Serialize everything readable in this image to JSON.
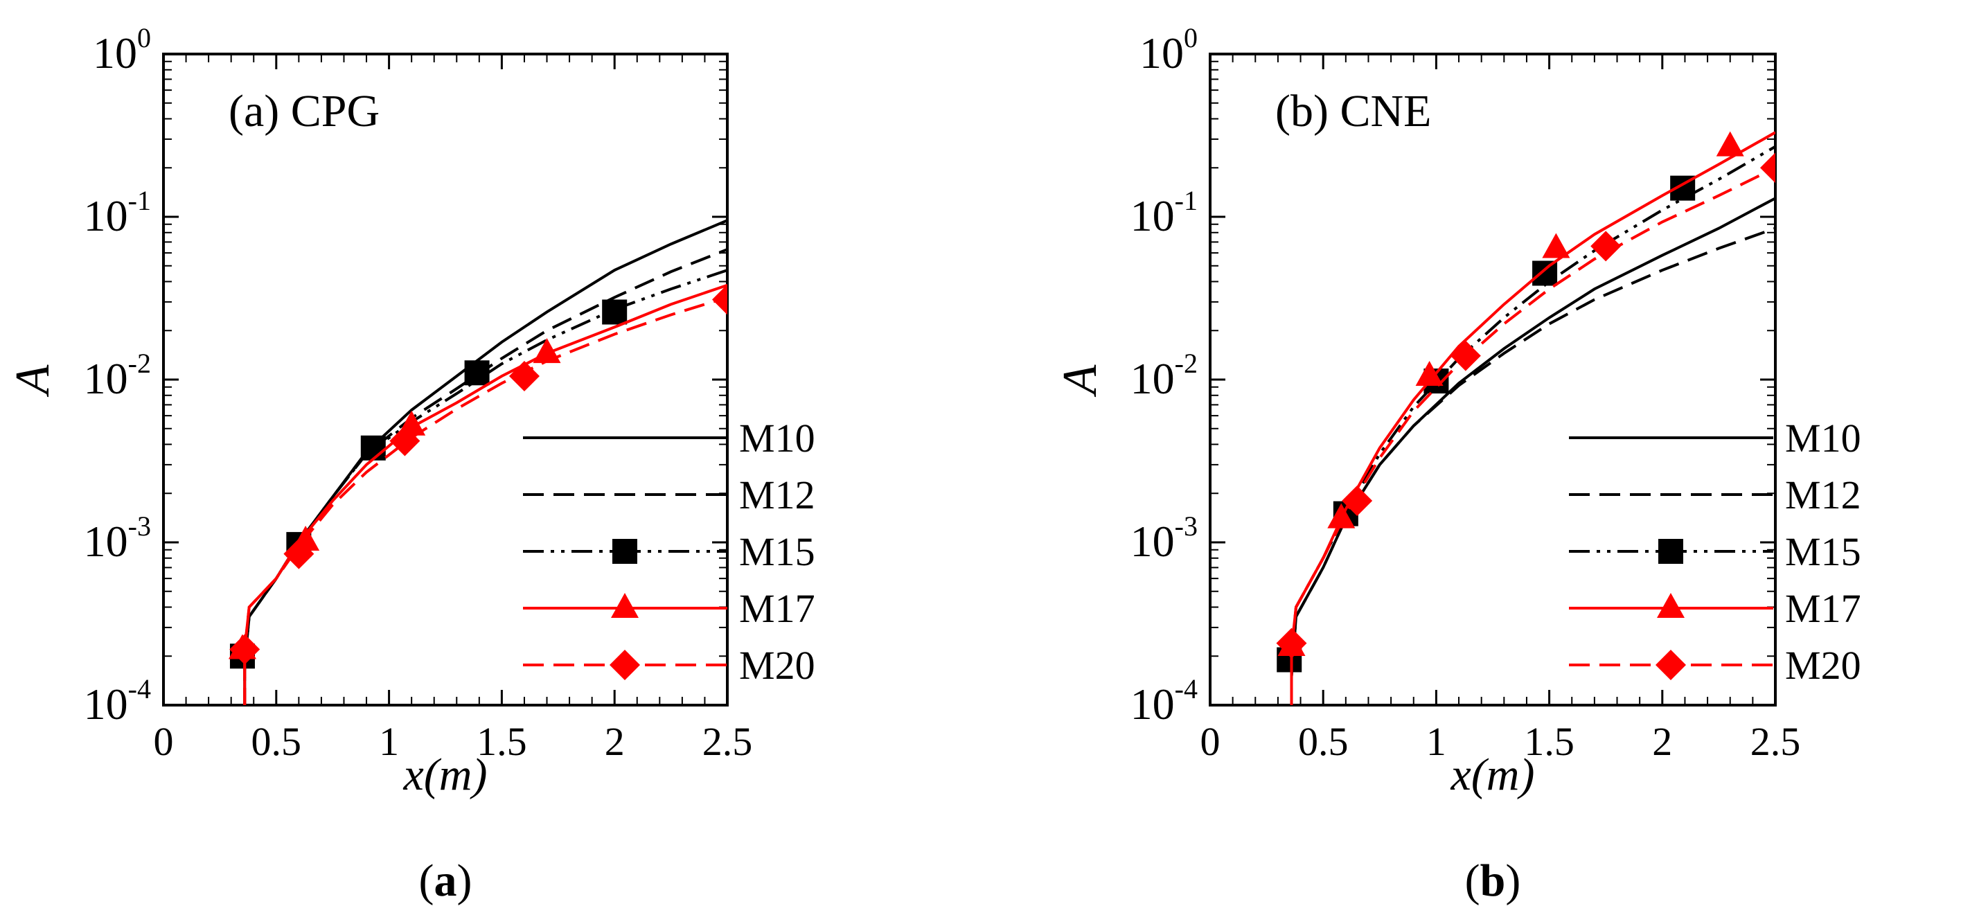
{
  "chart_data": [
    {
      "type": "line",
      "panel_label": "(a) CPG",
      "caption_letter": "a",
      "xlabel": "x(m)",
      "ylabel": "A",
      "yscale": "log",
      "xlim": [
        0,
        2.5
      ],
      "ylim": [
        0.0001,
        1
      ],
      "xticks": [
        "0",
        "0.5",
        "1",
        "1.5",
        "2",
        "2.5"
      ],
      "xtick_values": [
        0,
        0.5,
        1,
        1.5,
        2,
        2.5
      ],
      "yticks": [
        {
          "base": "10",
          "exp": "0"
        },
        {
          "base": "10",
          "exp": "-1"
        },
        {
          "base": "10",
          "exp": "-2"
        },
        {
          "base": "10",
          "exp": "-3"
        },
        {
          "base": "10",
          "exp": "-4"
        }
      ],
      "ytick_values": [
        1,
        0.1,
        0.01,
        0.001,
        0.0001
      ],
      "legend_position": "lower-right",
      "series": [
        {
          "name": "M10",
          "color": "#000000",
          "dash": "solid",
          "marker": "none",
          "x": [
            0.36,
            0.38,
            0.5,
            0.6,
            0.75,
            0.9,
            1.1,
            1.3,
            1.5,
            1.7,
            2.0,
            2.25,
            2.5
          ],
          "y": [
            0.00018,
            0.00035,
            0.0006,
            0.001,
            0.0019,
            0.0036,
            0.0065,
            0.0105,
            0.017,
            0.026,
            0.047,
            0.068,
            0.095
          ]
        },
        {
          "name": "M12",
          "color": "#000000",
          "dash": "dash",
          "marker": "none",
          "x": [
            0.36,
            0.38,
            0.5,
            0.6,
            0.75,
            0.9,
            1.1,
            1.3,
            1.5,
            1.7,
            2.0,
            2.25,
            2.5
          ],
          "y": [
            0.00018,
            0.00035,
            0.0006,
            0.001,
            0.0019,
            0.0035,
            0.0058,
            0.0088,
            0.0135,
            0.02,
            0.032,
            0.046,
            0.063
          ]
        },
        {
          "name": "M15",
          "color": "#000000",
          "dash": "dashdotdot",
          "marker": "square",
          "x": [
            0.36,
            0.38,
            0.5,
            0.6,
            0.75,
            0.9,
            1.1,
            1.3,
            1.5,
            1.7,
            2.0,
            2.25,
            2.5
          ],
          "y": [
            0.00018,
            0.00035,
            0.0006,
            0.001,
            0.0019,
            0.0035,
            0.0055,
            0.0082,
            0.0125,
            0.0175,
            0.027,
            0.036,
            0.047
          ],
          "marker_x": [
            0.35,
            0.6,
            0.93,
            1.39,
            2.0
          ],
          "marker_y": [
            0.0002,
            0.00097,
            0.0038,
            0.011,
            0.026
          ]
        },
        {
          "name": "M17",
          "color": "#ff0000",
          "dash": "solid",
          "marker": "triangle",
          "x": [
            0.36,
            0.38,
            0.5,
            0.6,
            0.75,
            0.9,
            1.1,
            1.3,
            1.5,
            1.7,
            2.0,
            2.25,
            2.5
          ],
          "y": [
            0.00022,
            0.0004,
            0.0006,
            0.001,
            0.0018,
            0.003,
            0.0051,
            0.0072,
            0.0105,
            0.0145,
            0.021,
            0.029,
            0.038
          ],
          "marker_x": [
            0.35,
            0.63,
            1.1,
            1.7
          ],
          "marker_y": [
            0.00022,
            0.00102,
            0.0052,
            0.0145
          ]
        },
        {
          "name": "M20",
          "color": "#ff0000",
          "dash": "dash",
          "marker": "diamond",
          "x": [
            0.36,
            0.38,
            0.5,
            0.6,
            0.75,
            0.9,
            1.1,
            1.3,
            1.5,
            1.7,
            2.0,
            2.25,
            2.5
          ],
          "y": [
            0.00022,
            0.0004,
            0.0006,
            0.00095,
            0.0017,
            0.0027,
            0.0044,
            0.0066,
            0.0095,
            0.013,
            0.019,
            0.025,
            0.032
          ],
          "marker_x": [
            0.36,
            0.6,
            1.07,
            1.6,
            2.5
          ],
          "marker_y": [
            0.00022,
            0.00085,
            0.0042,
            0.0105,
            0.031
          ]
        }
      ]
    },
    {
      "type": "line",
      "panel_label": "(b) CNE",
      "caption_letter": "b",
      "xlabel": "x(m)",
      "ylabel": "A",
      "yscale": "log",
      "xlim": [
        0,
        2.5
      ],
      "ylim": [
        0.0001,
        1
      ],
      "xticks": [
        "0",
        "0.5",
        "1",
        "1.5",
        "2",
        "2.5"
      ],
      "xtick_values": [
        0,
        0.5,
        1,
        1.5,
        2,
        2.5
      ],
      "yticks": [
        {
          "base": "10",
          "exp": "0"
        },
        {
          "base": "10",
          "exp": "-1"
        },
        {
          "base": "10",
          "exp": "-2"
        },
        {
          "base": "10",
          "exp": "-3"
        },
        {
          "base": "10",
          "exp": "-4"
        }
      ],
      "ytick_values": [
        1,
        0.1,
        0.01,
        0.001,
        0.0001
      ],
      "legend_position": "lower-right",
      "series": [
        {
          "name": "M10",
          "color": "#000000",
          "dash": "solid",
          "marker": "none",
          "x": [
            0.36,
            0.38,
            0.5,
            0.6,
            0.75,
            0.9,
            1.1,
            1.3,
            1.5,
            1.7,
            2.0,
            2.25,
            2.5
          ],
          "y": [
            0.00015,
            0.00035,
            0.0007,
            0.0014,
            0.003,
            0.0052,
            0.0095,
            0.0155,
            0.024,
            0.036,
            0.058,
            0.085,
            0.13
          ]
        },
        {
          "name": "M12",
          "color": "#000000",
          "dash": "dash",
          "marker": "none",
          "x": [
            0.36,
            0.38,
            0.5,
            0.6,
            0.75,
            0.9,
            1.1,
            1.3,
            1.5,
            1.7,
            2.0,
            2.25,
            2.5
          ],
          "y": [
            0.00015,
            0.00035,
            0.0007,
            0.0014,
            0.003,
            0.0052,
            0.0092,
            0.0145,
            0.022,
            0.031,
            0.047,
            0.064,
            0.085
          ]
        },
        {
          "name": "M15",
          "color": "#000000",
          "dash": "dashdotdot",
          "marker": "square",
          "x": [
            0.36,
            0.38,
            0.5,
            0.6,
            0.75,
            0.9,
            1.1,
            1.3,
            1.5,
            1.7,
            2.0,
            2.25,
            2.5
          ],
          "y": [
            0.00018,
            0.0004,
            0.0008,
            0.0015,
            0.0035,
            0.0068,
            0.0135,
            0.024,
            0.04,
            0.062,
            0.11,
            0.17,
            0.27
          ],
          "marker_x": [
            0.35,
            0.6,
            1.0,
            1.48,
            2.09
          ],
          "marker_y": [
            0.00019,
            0.0015,
            0.0098,
            0.045,
            0.15
          ]
        },
        {
          "name": "M17",
          "color": "#ff0000",
          "dash": "solid",
          "marker": "triangle",
          "x": [
            0.36,
            0.38,
            0.5,
            0.6,
            0.75,
            0.9,
            1.1,
            1.3,
            1.5,
            1.7,
            2.0,
            2.25,
            2.5
          ],
          "y": [
            0.00022,
            0.0004,
            0.0008,
            0.0016,
            0.0038,
            0.0075,
            0.016,
            0.029,
            0.05,
            0.078,
            0.135,
            0.21,
            0.33
          ],
          "marker_x": [
            0.36,
            0.58,
            0.97,
            1.53,
            2.3
          ],
          "marker_y": [
            0.00023,
            0.0014,
            0.0105,
            0.064,
            0.27
          ]
        },
        {
          "name": "M20",
          "color": "#ff0000",
          "dash": "dash",
          "marker": "diamond",
          "x": [
            0.36,
            0.38,
            0.5,
            0.6,
            0.75,
            0.9,
            1.1,
            1.3,
            1.5,
            1.7,
            2.0,
            2.25,
            2.5
          ],
          "y": [
            0.00022,
            0.0004,
            0.0008,
            0.0015,
            0.0033,
            0.0064,
            0.0125,
            0.022,
            0.036,
            0.055,
            0.093,
            0.135,
            0.2
          ],
          "marker_x": [
            0.36,
            0.65,
            1.13,
            1.75,
            2.5
          ],
          "marker_y": [
            0.00024,
            0.0018,
            0.014,
            0.066,
            0.2
          ]
        }
      ]
    }
  ]
}
